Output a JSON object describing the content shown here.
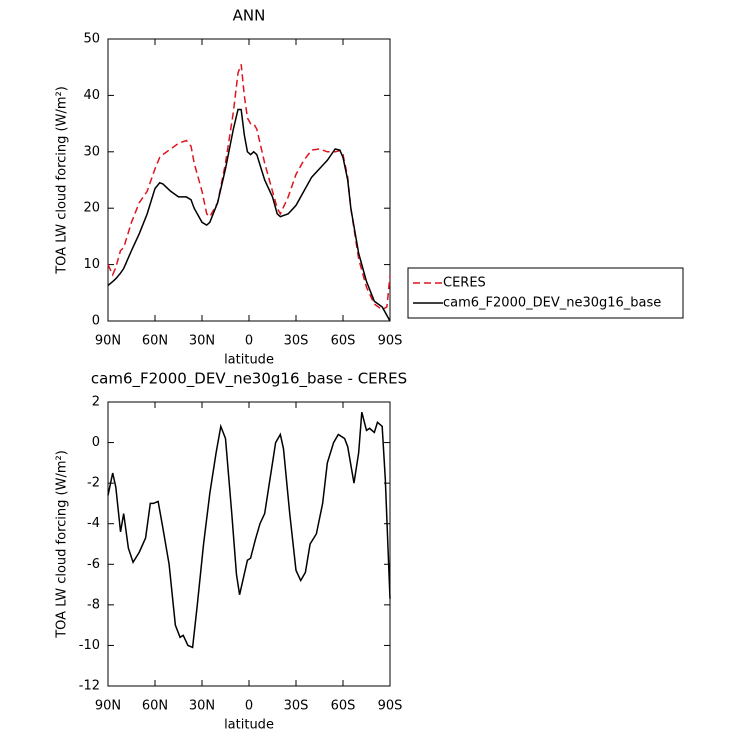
{
  "chart_data": [
    {
      "type": "line",
      "title": "ANN",
      "xlabel": "latitude",
      "ylabel": "TOA LW cloud forcing (W/m²)",
      "x": [
        90,
        87,
        85,
        82,
        80,
        75,
        70,
        65,
        60,
        57,
        55,
        50,
        45,
        40,
        37,
        35,
        30,
        27,
        25,
        20,
        15,
        10,
        7,
        5,
        3,
        1,
        -1,
        -3,
        -5,
        -10,
        -15,
        -18,
        -20,
        -25,
        -30,
        -35,
        -40,
        -45,
        -50,
        -55,
        -58,
        -60,
        -63,
        -65,
        -70,
        -75,
        -80,
        -85,
        -88,
        -90
      ],
      "series": [
        {
          "name": "CERES",
          "color": "#e0141e",
          "dashed": true,
          "values": [
            10,
            8.2,
            9.5,
            12.5,
            13,
            17.5,
            21,
            23,
            27,
            29,
            29.5,
            30.5,
            31.5,
            32,
            31,
            28,
            23,
            19,
            18.5,
            21,
            28,
            37,
            44,
            45.5,
            40,
            36,
            35,
            35,
            34,
            28,
            23,
            20,
            19,
            22,
            26,
            28.5,
            30.3,
            30.5,
            30,
            30,
            30.2,
            29.5,
            25.5,
            20,
            11,
            6,
            3,
            2,
            2.5,
            8
          ]
        },
        {
          "name": "cam6_F2000_DEV_ne30g16_base",
          "color": "#000000",
          "dashed": false,
          "values": [
            6.3,
            7,
            7.5,
            8.5,
            9.3,
            12.5,
            15.5,
            19,
            23.5,
            24.5,
            24.3,
            23,
            22,
            22,
            21.5,
            20,
            17.5,
            17,
            17.5,
            21,
            27,
            34,
            37.5,
            37.5,
            33,
            30,
            29.5,
            30,
            29.5,
            25,
            22,
            19,
            18.5,
            19,
            20.5,
            23,
            25.5,
            27,
            28.5,
            30.5,
            30.3,
            29,
            25,
            20,
            12,
            7,
            3.5,
            2.5,
            1,
            0
          ]
        }
      ],
      "xlim": [
        90,
        -90
      ],
      "xticks": [
        {
          "value": 90,
          "label": "90N"
        },
        {
          "value": 60,
          "label": "60N"
        },
        {
          "value": 30,
          "label": "30N"
        },
        0,
        {
          "value": -30,
          "label": "30S"
        },
        {
          "value": -60,
          "label": "60S"
        },
        {
          "value": -90,
          "label": "90S"
        }
      ],
      "ylim": [
        0,
        50
      ],
      "yticks": [
        0,
        10,
        20,
        30,
        40,
        50
      ],
      "legend": "right"
    },
    {
      "type": "line",
      "title": "cam6_F2000_DEV_ne30g16_base - CERES",
      "xlabel": "latitude",
      "ylabel": "TOA LW cloud forcing (W/m²)",
      "x": [
        90,
        87,
        85,
        82,
        80,
        77,
        74,
        70,
        66,
        63,
        61,
        58,
        55,
        51,
        47,
        44,
        42,
        39,
        36,
        33,
        29,
        25,
        21,
        18,
        15,
        11,
        8,
        6,
        1,
        -1,
        -4,
        -7,
        -10,
        -12,
        -15,
        -17,
        -20,
        -22,
        -26,
        -30,
        -33,
        -36,
        -39,
        -43,
        -47,
        -50,
        -54,
        -57,
        -61,
        -63,
        -67,
        -70,
        -72,
        -75,
        -77,
        -80,
        -82,
        -85,
        -87,
        -90
      ],
      "series": [
        {
          "color": "#000000",
          "dashed": false,
          "values": [
            -2.6,
            -1.5,
            -2.2,
            -4.4,
            -3.5,
            -5.2,
            -5.9,
            -5.4,
            -4.7,
            -3,
            -3,
            -2.9,
            -4.2,
            -6,
            -9,
            -9.6,
            -9.5,
            -10,
            -10.1,
            -8,
            -5,
            -2.5,
            -0.5,
            0.8,
            0.2,
            -3.5,
            -6.5,
            -7.5,
            -5.8,
            -5.7,
            -4.8,
            -4,
            -3.5,
            -2.5,
            -1,
            0,
            0.4,
            -0.3,
            -3.5,
            -6.3,
            -6.8,
            -6.4,
            -5,
            -4.5,
            -3,
            -1,
            0,
            0.4,
            0.2,
            -0.2,
            -2,
            -0.5,
            1.5,
            0.6,
            0.7,
            0.5,
            1,
            0.8,
            -1.8,
            -7.7
          ]
        }
      ],
      "xlim": [
        90,
        -90
      ],
      "xticks": [
        {
          "value": 90,
          "label": "90N"
        },
        {
          "value": 60,
          "label": "60N"
        },
        {
          "value": 30,
          "label": "30N"
        },
        0,
        {
          "value": -30,
          "label": "30S"
        },
        {
          "value": -60,
          "label": "60S"
        },
        {
          "value": -90,
          "label": "90S"
        }
      ],
      "ylim": [
        -12,
        2
      ],
      "yticks": [
        -12,
        -10,
        -8,
        -6,
        -4,
        -2,
        0,
        2
      ]
    }
  ]
}
